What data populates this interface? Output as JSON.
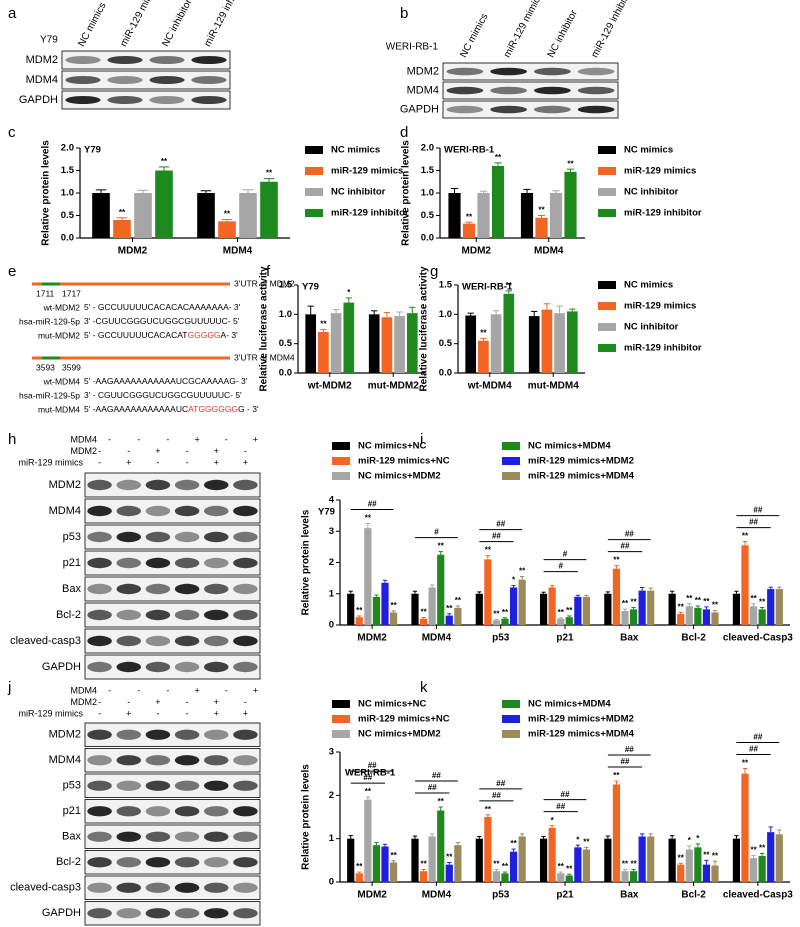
{
  "blots": [
    {
      "panel": "a",
      "cell_line": "Y79",
      "columns": [
        "NC mimics",
        "miR-129 mimics",
        "NC inhibitor",
        "miR-129 inhibitor"
      ],
      "rows": [
        "MDM2",
        "MDM4",
        "GAPDH"
      ]
    },
    {
      "panel": "b",
      "cell_line": "WERI-RB-1",
      "columns": [
        "NC mimics",
        "miR-129 mimics",
        "NC inhibitor",
        "miR-129 inhibitor"
      ],
      "rows": [
        "MDM2",
        "MDM4",
        "GAPDH"
      ]
    },
    {
      "panel": "h",
      "treatments": [
        {
          "name": "MDM4",
          "signs": [
            "-",
            "-",
            "-",
            "+",
            "-",
            "+"
          ]
        },
        {
          "name": "MDM2",
          "signs": [
            "-",
            "-",
            "+",
            "-",
            "+",
            "-"
          ]
        },
        {
          "name": "miR-129 mimics",
          "signs": [
            "-",
            "+",
            "-",
            "-",
            "+",
            "+"
          ]
        }
      ],
      "rows": [
        "MDM2",
        "MDM4",
        "p53",
        "p21",
        "Bax",
        "Bcl-2",
        "cleaved-casp3",
        "GAPDH"
      ]
    },
    {
      "panel": "j",
      "treatments": [
        {
          "name": "MDM4",
          "signs": [
            "-",
            "-",
            "-",
            "+",
            "-",
            "+"
          ]
        },
        {
          "name": "MDM2",
          "signs": [
            "-",
            "-",
            "+",
            "-",
            "+",
            "-"
          ]
        },
        {
          "name": "miR-129 mimics",
          "signs": [
            "-",
            "+",
            "-",
            "-",
            "+",
            "+"
          ]
        }
      ],
      "rows": [
        "MDM2",
        "MDM4",
        "p53",
        "p21",
        "Bax",
        "Bcl-2",
        "cleaved-casp3",
        "GAPDH"
      ]
    }
  ],
  "sequences": {
    "panel": "e",
    "genes": [
      {
        "utr_label": "3'UTR of MDM2",
        "positions": [
          "1711",
          "1717"
        ],
        "rows": [
          {
            "name": "wt-MDM2",
            "parts": [
              {
                "text": "5' - GCCUUUUUCACACACAAAAAAA- 3'"
              }
            ]
          },
          {
            "name": "hsa-miR-129-5p",
            "parts": [
              {
                "text": "3' -CGUUCGGGUCUGGCGUUUUUC- 5'"
              }
            ]
          },
          {
            "name": "mut-MDM2",
            "parts": [
              {
                "text": "5' - GCCUUUUUCACACAT"
              },
              {
                "text": "GGGGG",
                "color": "#e8382f"
              },
              {
                "text": "A- 3'"
              }
            ]
          }
        ]
      },
      {
        "utr_label": "3'UTR of MDM4",
        "positions": [
          "3593",
          "3599"
        ],
        "rows": [
          {
            "name": "wt-MDM4",
            "parts": [
              {
                "text": "5' -AAGAAAAAAAAAAAUCGCAAAAAG- 3'"
              }
            ]
          },
          {
            "name": "hsa-miR-129-5p",
            "parts": [
              {
                "text": "3' - CGUUCGGGUCUGGCGUUUUUC- 5'"
              }
            ]
          },
          {
            "name": "mut-MDM4",
            "parts": [
              {
                "text": "5' -AAGAAAAAAAAAAAUC"
              },
              {
                "text": "ATGGGGGG",
                "color": "#e8382f"
              },
              {
                "text": "G - 3'"
              }
            ]
          }
        ]
      }
    ]
  },
  "chart_data": [
    {
      "type": "bar",
      "panel": "c",
      "title": "Y79",
      "y_label": "Relative protein levels",
      "categories": [
        "MDM2",
        "MDM4"
      ],
      "ylim": [
        0,
        2
      ],
      "yticks": [
        {
          "value": 0,
          "label": "0.0"
        },
        0.5,
        {
          "value": 1,
          "label": "1.0"
        },
        1.5,
        {
          "value": 2,
          "label": "2.0"
        }
      ],
      "legend": true,
      "series": [
        {
          "name": "NC mimics",
          "color": "#000000",
          "values": [
            1.0,
            1.0
          ],
          "errors": [
            0.07,
            0.05
          ]
        },
        {
          "name": "miR-129 mimics",
          "color": "#f26522",
          "values": [
            0.4,
            0.37
          ],
          "errors": [
            0.05,
            0.04
          ],
          "significance": [
            "**",
            "**"
          ]
        },
        {
          "name": "NC inhibitor",
          "color": "#a6a6a6",
          "values": [
            1.0,
            1.0
          ],
          "errors": [
            0.06,
            0.07
          ]
        },
        {
          "name": "miR-129 inhibitor",
          "color": "#1e8a1e",
          "values": [
            1.5,
            1.25
          ],
          "errors": [
            0.08,
            0.07
          ],
          "significance": [
            "**",
            "**"
          ]
        }
      ]
    },
    {
      "type": "bar",
      "panel": "d",
      "title": "WERI-RB-1",
      "y_label": "Relative protein levels",
      "categories": [
        "MDM2",
        "MDM4"
      ],
      "ylim": [
        0,
        2
      ],
      "yticks": [
        {
          "value": 0,
          "label": "0.0"
        },
        0.5,
        {
          "value": 1,
          "label": "1.0"
        },
        1.5,
        {
          "value": 2,
          "label": "2.0"
        }
      ],
      "legend": true,
      "series": [
        {
          "name": "NC mimics",
          "color": "#000000",
          "values": [
            1.0,
            1.0
          ],
          "errors": [
            0.1,
            0.08
          ]
        },
        {
          "name": "miR-129 mimics",
          "color": "#f26522",
          "values": [
            0.32,
            0.45
          ],
          "errors": [
            0.03,
            0.05
          ],
          "significance": [
            "**",
            "**"
          ]
        },
        {
          "name": "NC inhibitor",
          "color": "#a6a6a6",
          "values": [
            1.0,
            1.0
          ],
          "errors": [
            0.04,
            0.05
          ]
        },
        {
          "name": "miR-129 inhibitor",
          "color": "#1e8a1e",
          "values": [
            1.6,
            1.47
          ],
          "errors": [
            0.07,
            0.06
          ],
          "significance": [
            "**",
            "**"
          ]
        }
      ]
    },
    {
      "type": "bar",
      "panel": "f",
      "title": "Y79",
      "y_label": "Relative luciferase activity",
      "categories": [
        "wt-MDM2",
        "mut-MDM2"
      ],
      "ylim": [
        0,
        1.5
      ],
      "yticks": [
        {
          "value": 0,
          "label": "0.0"
        },
        0.5,
        {
          "value": 1,
          "label": "1.0"
        },
        1.5
      ],
      "legend": false,
      "series": [
        {
          "name": "NC mimics",
          "color": "#000000",
          "values": [
            1.0,
            1.0
          ],
          "errors": [
            0.14,
            0.06
          ]
        },
        {
          "name": "miR-129 mimics",
          "color": "#f26522",
          "values": [
            0.7,
            0.95
          ],
          "errors": [
            0.04,
            0.08
          ],
          "significance": [
            "**",
            null
          ]
        },
        {
          "name": "NC inhibitor",
          "color": "#a6a6a6",
          "values": [
            1.02,
            0.97
          ],
          "errors": [
            0.06,
            0.07
          ]
        },
        {
          "name": "miR-129 inhibitor",
          "color": "#1e8a1e",
          "values": [
            1.2,
            1.02
          ],
          "errors": [
            0.08,
            0.1
          ],
          "significance": [
            "*",
            null
          ]
        }
      ]
    },
    {
      "type": "bar",
      "panel": "g",
      "title": "WERI-RB-1",
      "y_label": "Relative luciferase activity",
      "categories": [
        "wt-MDM4",
        "mut-MDM4"
      ],
      "ylim": [
        0,
        1.5
      ],
      "yticks": [
        {
          "value": 0,
          "label": "0.0"
        },
        0.5,
        {
          "value": 1,
          "label": "1.0"
        },
        1.5
      ],
      "legend": true,
      "series": [
        {
          "name": "NC mimics",
          "color": "#000000",
          "values": [
            0.98,
            0.97
          ],
          "errors": [
            0.04,
            0.08
          ]
        },
        {
          "name": "miR-129 mimics",
          "color": "#f26522",
          "values": [
            0.55,
            1.08
          ],
          "errors": [
            0.04,
            0.1
          ],
          "significance": [
            "**",
            null
          ]
        },
        {
          "name": "NC inhibitor",
          "color": "#a6a6a6",
          "values": [
            1.0,
            1.02
          ],
          "errors": [
            0.06,
            0.12
          ]
        },
        {
          "name": "miR-129 inhibitor",
          "color": "#1e8a1e",
          "values": [
            1.35,
            1.05
          ],
          "errors": [
            0.05,
            0.04
          ],
          "significance": [
            "**",
            null
          ]
        }
      ]
    },
    {
      "type": "bar",
      "panel": "i",
      "title": "Y79",
      "y_label": "Relative protein levels",
      "categories": [
        "MDM2",
        "MDM4",
        "p53",
        "p21",
        "Bax",
        "Bcl-2",
        "cleaved-Casp3"
      ],
      "ylim": [
        0,
        4
      ],
      "yticks": [
        0,
        1,
        2,
        3,
        4
      ],
      "legend": true,
      "brackets": [
        [
          "##"
        ],
        [
          "#"
        ],
        [
          "##",
          "##"
        ],
        [
          "#",
          "#"
        ],
        [
          "##",
          "##"
        ],
        null,
        [
          "##",
          "##"
        ]
      ],
      "series": [
        {
          "name": "NC mimics+NC",
          "color": "#000000",
          "values": [
            1,
            1,
            1,
            1,
            1,
            1,
            1
          ],
          "errors": [
            0.08,
            0.08,
            0.06,
            0.05,
            0.06,
            0.08,
            0.08
          ]
        },
        {
          "name": "miR-129 mimics+NC",
          "color": "#f26522",
          "values": [
            0.25,
            0.2,
            2.1,
            1.2,
            1.8,
            0.35,
            2.55
          ],
          "errors": [
            0.04,
            0.04,
            0.12,
            0.06,
            0.1,
            0.06,
            0.12
          ],
          "significance": [
            "**",
            "**",
            "**",
            null,
            "**",
            "**",
            "**"
          ]
        },
        {
          "name": "NC mimics+MDM2",
          "color": "#a6a6a6",
          "values": [
            3.1,
            1.2,
            0.15,
            0.2,
            0.45,
            0.6,
            0.6
          ],
          "errors": [
            0.15,
            0.08,
            0.03,
            0.03,
            0.06,
            0.08,
            0.08
          ],
          "significance": [
            "**",
            null,
            "**",
            "**",
            "**",
            "**",
            "**"
          ]
        },
        {
          "name": "NC mimics+MDM4",
          "color": "#1e8a1e",
          "values": [
            0.9,
            2.25,
            0.2,
            0.25,
            0.5,
            0.55,
            0.5
          ],
          "errors": [
            0.06,
            0.1,
            0.03,
            0.04,
            0.06,
            0.06,
            0.06
          ],
          "significance": [
            null,
            "**",
            "**",
            "**",
            "**",
            "**",
            "**"
          ]
        },
        {
          "name": "miR-129 mimics+MDM2",
          "color": "#1f1fe0",
          "values": [
            1.35,
            0.3,
            1.2,
            0.9,
            1.1,
            0.5,
            1.15
          ],
          "errors": [
            0.08,
            0.06,
            0.06,
            0.05,
            0.1,
            0.08,
            0.06
          ],
          "significance": [
            null,
            "**",
            "*",
            null,
            null,
            "**",
            null
          ]
        },
        {
          "name": "miR-129 mimics+MDM4",
          "color": "#9b8b5a",
          "values": [
            0.4,
            0.55,
            1.45,
            0.9,
            1.1,
            0.4,
            1.15
          ],
          "errors": [
            0.05,
            0.06,
            0.1,
            0.05,
            0.08,
            0.06,
            0.06
          ],
          "significance": [
            "**",
            "**",
            "**",
            null,
            null,
            "**",
            null
          ]
        }
      ]
    },
    {
      "type": "bar",
      "panel": "k",
      "title": "WERI-RB-1",
      "y_label": "Relative protein levels",
      "categories": [
        "MDM2",
        "MDM4",
        "p53",
        "p21",
        "Bax",
        "Bcl-2",
        "cleaved-Casp3"
      ],
      "ylim": [
        0,
        3
      ],
      "yticks": [
        0,
        1,
        2,
        3
      ],
      "legend": true,
      "brackets": [
        [
          "##",
          "##"
        ],
        [
          "##",
          "##"
        ],
        [
          "##",
          "##"
        ],
        [
          "##",
          "##"
        ],
        [
          "##",
          "##"
        ],
        null,
        [
          "##",
          "##"
        ]
      ],
      "series": [
        {
          "name": "NC mimics+NC",
          "color": "#000000",
          "values": [
            1,
            1,
            1,
            1,
            1,
            1,
            1
          ],
          "errors": [
            0.07,
            0.06,
            0.05,
            0.05,
            0.06,
            0.07,
            0.07
          ]
        },
        {
          "name": "miR-129 mimics+NC",
          "color": "#f26522",
          "values": [
            0.2,
            0.25,
            1.5,
            1.25,
            2.25,
            0.4,
            2.5
          ],
          "errors": [
            0.03,
            0.04,
            0.05,
            0.05,
            0.08,
            0.03,
            0.12
          ],
          "significance": [
            "**",
            "**",
            "**",
            "*",
            "**",
            "**",
            "**"
          ]
        },
        {
          "name": "NC mimics+MDM2",
          "color": "#a6a6a6",
          "values": [
            1.9,
            1.05,
            0.25,
            0.2,
            0.25,
            0.75,
            0.55
          ],
          "errors": [
            0.06,
            0.06,
            0.04,
            0.03,
            0.04,
            0.08,
            0.06
          ],
          "significance": [
            "**",
            null,
            "**",
            "**",
            "**",
            "*",
            "**"
          ]
        },
        {
          "name": "NC mimics+MDM4",
          "color": "#1e8a1e",
          "values": [
            0.85,
            1.65,
            0.2,
            0.15,
            0.25,
            0.8,
            0.6
          ],
          "errors": [
            0.06,
            0.08,
            0.03,
            0.03,
            0.04,
            0.08,
            0.06
          ],
          "significance": [
            null,
            "**",
            "**",
            "**",
            "**",
            "*",
            "**"
          ]
        },
        {
          "name": "miR-129 mimics+MDM2",
          "color": "#1f1fe0",
          "values": [
            0.82,
            0.4,
            0.7,
            0.8,
            1.05,
            0.4,
            1.15
          ],
          "errors": [
            0.05,
            0.05,
            0.06,
            0.05,
            0.06,
            0.1,
            0.12
          ],
          "significance": [
            null,
            "**",
            "**",
            "*",
            null,
            "**",
            null
          ]
        },
        {
          "name": "miR-129 mimics+MDM4",
          "color": "#9b8b5a",
          "values": [
            0.45,
            0.85,
            1.05,
            0.75,
            1.05,
            0.38,
            1.1
          ],
          "errors": [
            0.04,
            0.06,
            0.06,
            0.05,
            0.06,
            0.1,
            0.1
          ],
          "significance": [
            "**",
            null,
            null,
            "**",
            null,
            "**",
            null
          ]
        }
      ]
    }
  ]
}
